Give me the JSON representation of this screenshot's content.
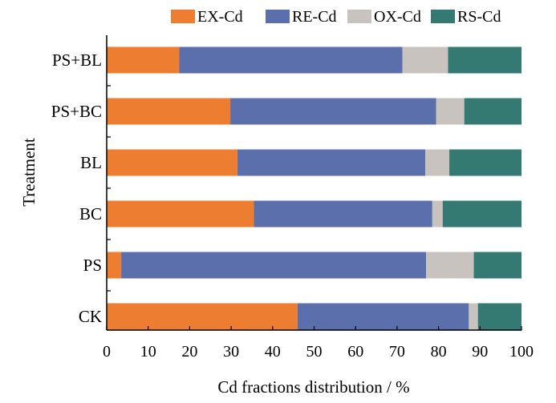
{
  "chart_data": {
    "type": "bar",
    "orientation": "horizontal",
    "stacked": true,
    "title": "",
    "xlabel": "Cd fractions distribution / %",
    "ylabel": "Treatment",
    "xlim": [
      0,
      100
    ],
    "xticks": [
      0,
      10,
      20,
      30,
      40,
      50,
      60,
      70,
      80,
      90,
      100
    ],
    "grid": false,
    "legend_position": "top",
    "categories": [
      "CK",
      "PS",
      "BC",
      "BL",
      "PS+BC",
      "PS+BL"
    ],
    "series": [
      {
        "name": "EX-Cd",
        "color": "#ED7D31",
        "values": [
          46.0,
          3.5,
          35.5,
          31.5,
          29.8,
          17.5
        ]
      },
      {
        "name": "RE-Cd",
        "color": "#5B6FAD",
        "values": [
          41.3,
          73.5,
          43.0,
          45.3,
          49.6,
          53.8
        ]
      },
      {
        "name": "OX-Cd",
        "color": "#C8C3BF",
        "values": [
          2.2,
          11.5,
          2.5,
          5.8,
          6.8,
          11.0
        ]
      },
      {
        "name": "RS-Cd",
        "color": "#347A72",
        "values": [
          10.5,
          11.5,
          19.0,
          17.4,
          13.8,
          17.7
        ]
      }
    ]
  }
}
